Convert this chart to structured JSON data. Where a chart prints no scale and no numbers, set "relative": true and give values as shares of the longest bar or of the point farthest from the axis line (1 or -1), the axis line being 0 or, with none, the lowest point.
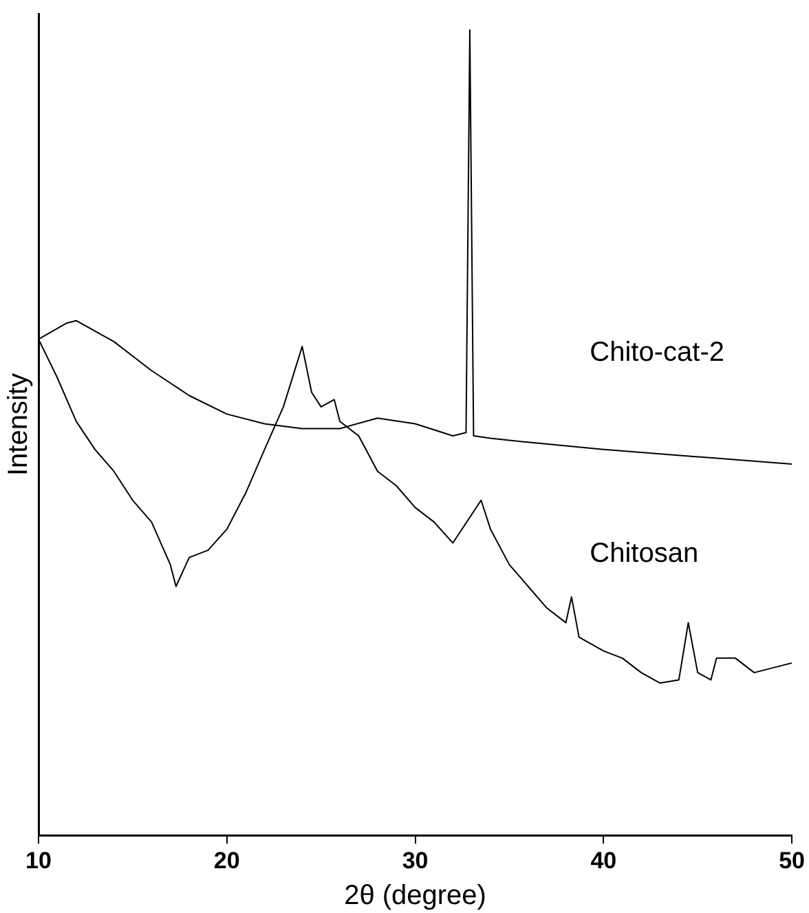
{
  "chart_data": {
    "type": "line",
    "relative": true,
    "xlabel": "2θ (degree)",
    "ylabel": "Intensity",
    "xlim": [
      10,
      50
    ],
    "xticks": [
      10,
      20,
      30,
      40,
      50
    ],
    "marker": "none",
    "legend": false,
    "grid": false,
    "series": [
      {
        "name": "Chito-cat-2",
        "color": "#000000",
        "x": [
          10,
          11.5,
          12,
          14,
          16,
          18,
          20,
          22,
          24,
          26,
          28,
          30,
          32,
          32.7,
          32.9,
          33.1,
          34,
          36,
          40,
          45,
          50
        ],
        "values": [
          0.616,
          0.636,
          0.639,
          0.613,
          0.577,
          0.546,
          0.523,
          0.511,
          0.505,
          0.505,
          0.518,
          0.511,
          0.496,
          0.5,
          1.0,
          0.496,
          0.493,
          0.488,
          0.479,
          0.47,
          0.461
        ]
      },
      {
        "name": "Chitosan",
        "color": "#000000",
        "x": [
          10,
          11,
          12,
          13,
          14,
          15,
          16,
          17,
          17.3,
          18,
          19,
          20,
          21,
          22,
          23,
          24,
          24.5,
          25,
          25.7,
          26,
          27,
          28,
          29,
          30,
          31,
          32,
          33.5,
          34,
          35,
          36,
          37,
          38,
          38.3,
          38.7,
          40,
          41,
          42,
          43,
          44,
          44.5,
          45,
          45.7,
          46,
          47,
          48,
          50
        ],
        "values": [
          0.616,
          0.568,
          0.514,
          0.479,
          0.452,
          0.416,
          0.389,
          0.336,
          0.309,
          0.345,
          0.354,
          0.38,
          0.425,
          0.479,
          0.532,
          0.607,
          0.55,
          0.532,
          0.541,
          0.514,
          0.496,
          0.452,
          0.434,
          0.407,
          0.389,
          0.363,
          0.416,
          0.38,
          0.336,
          0.309,
          0.282,
          0.264,
          0.296,
          0.246,
          0.229,
          0.22,
          0.202,
          0.189,
          0.193,
          0.264,
          0.202,
          0.193,
          0.22,
          0.22,
          0.202,
          0.214
        ]
      }
    ]
  }
}
